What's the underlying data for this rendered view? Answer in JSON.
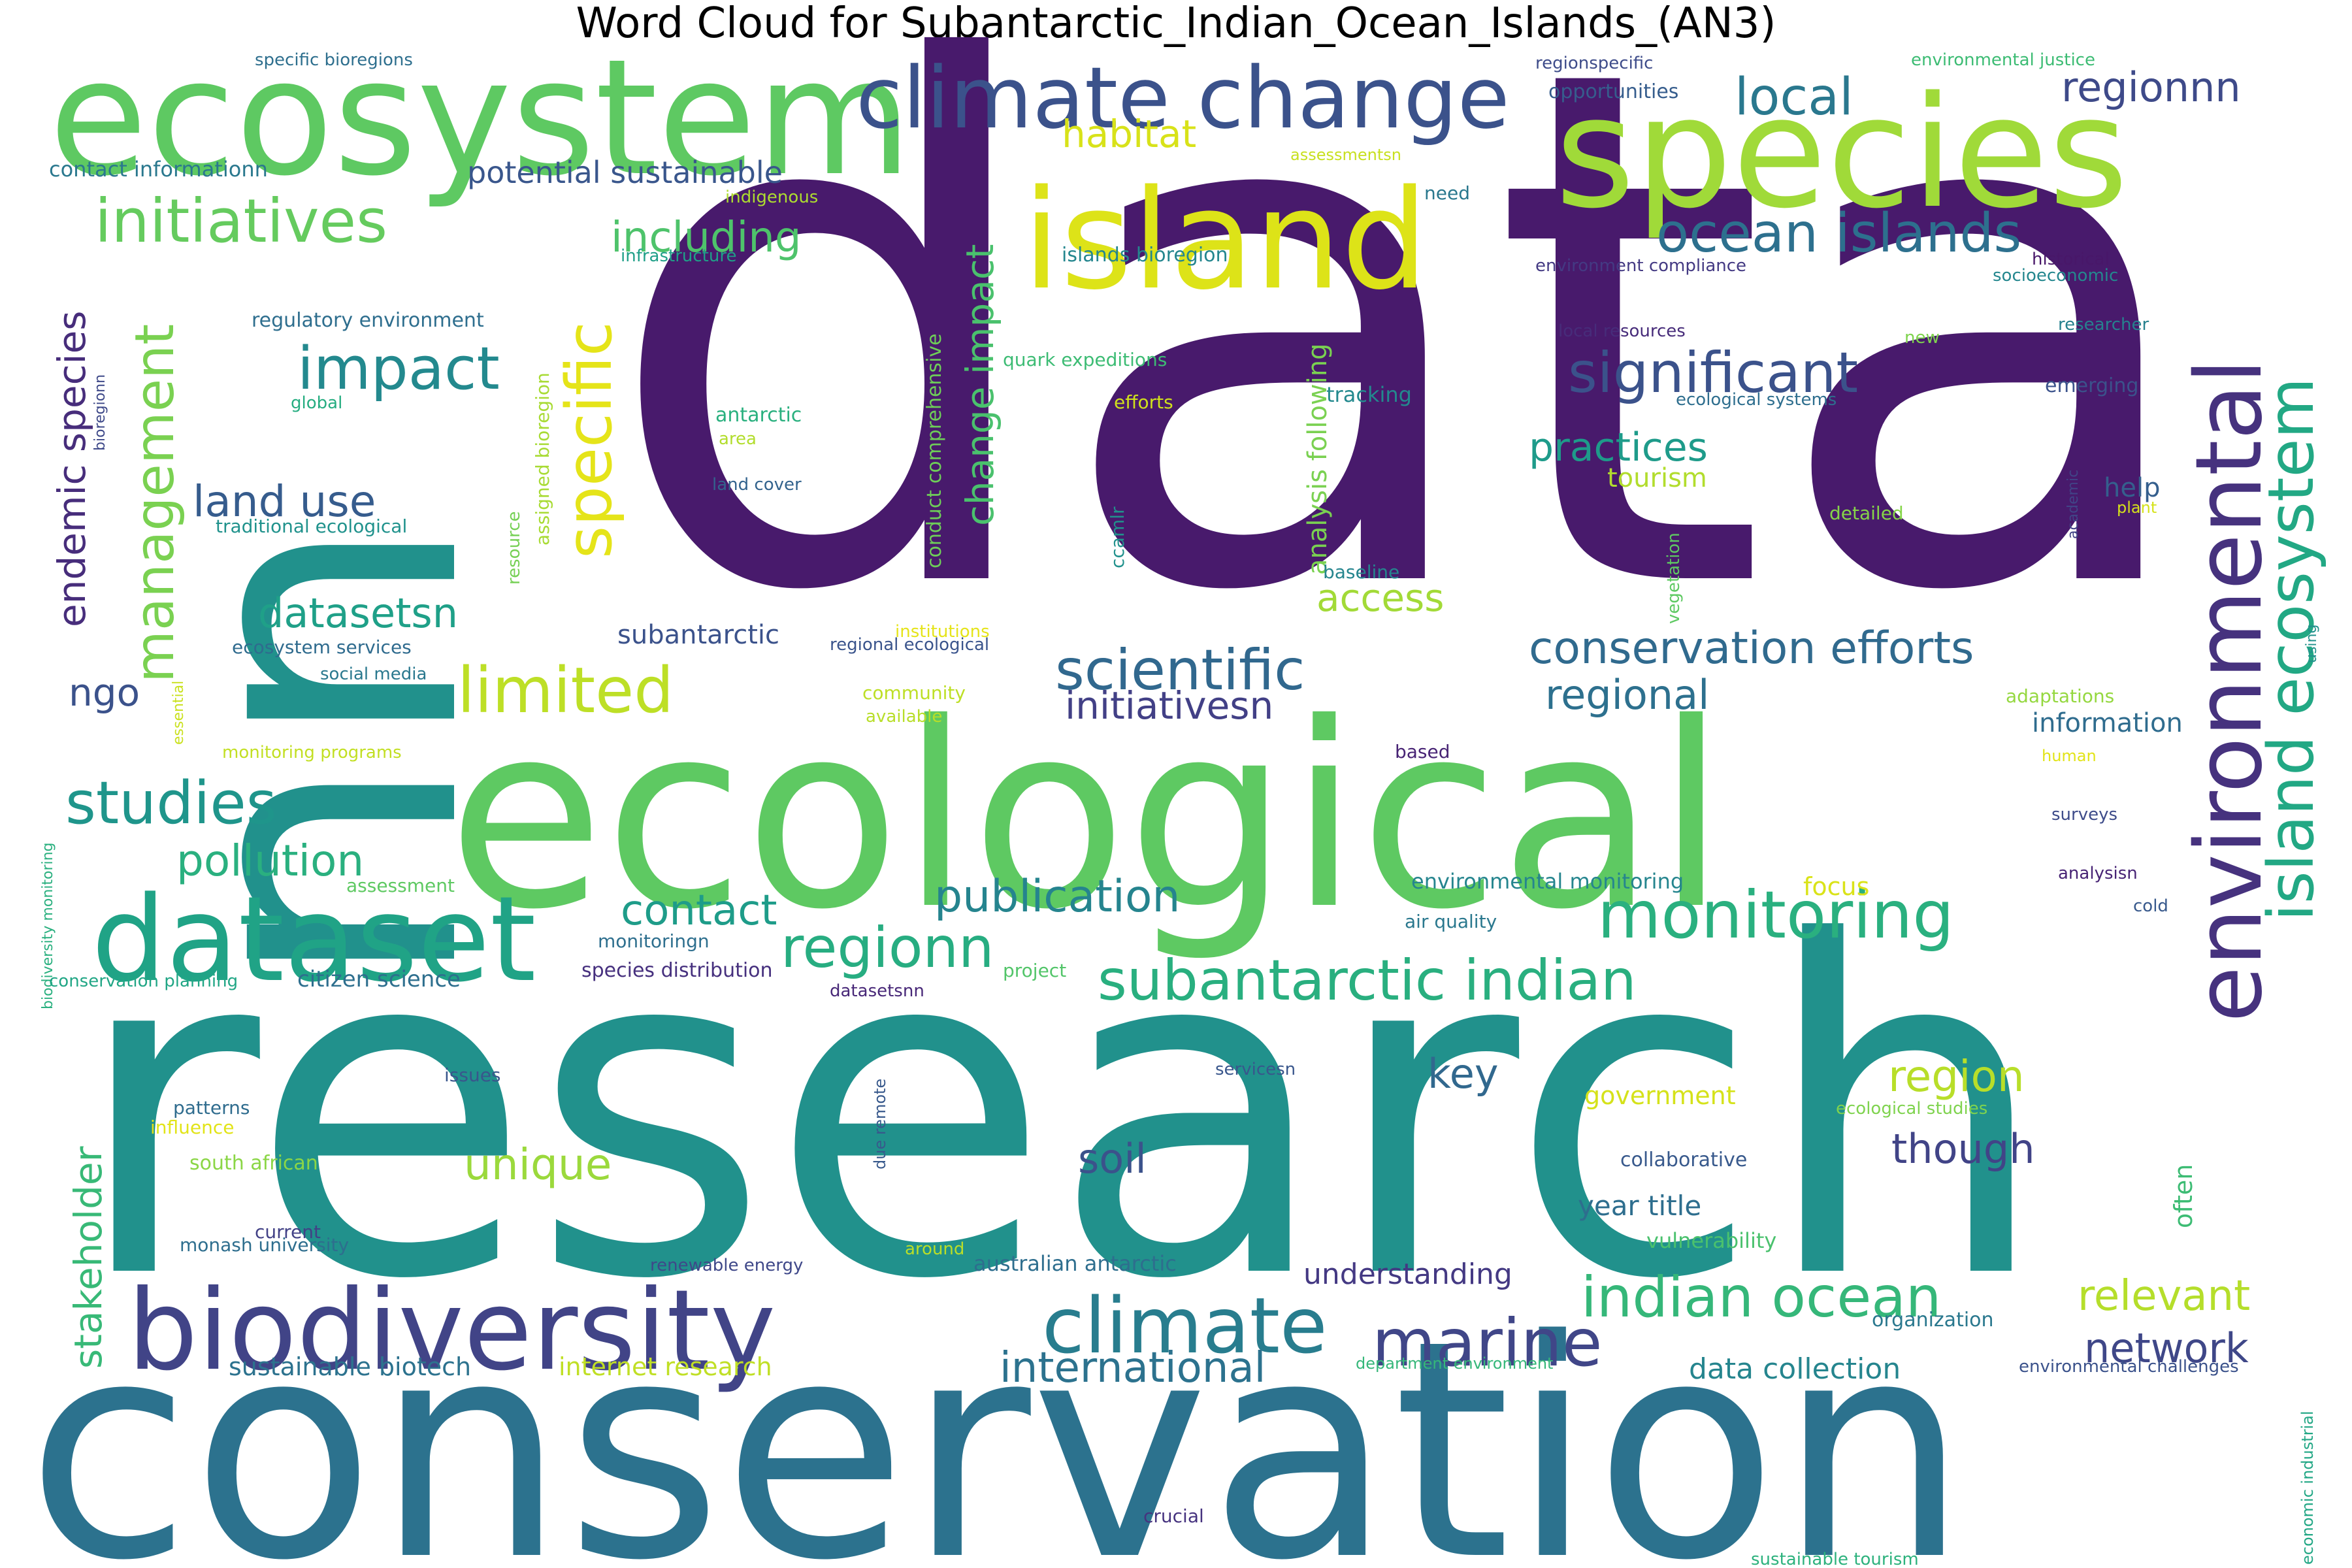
{
  "title": "Word Cloud for Subantarctic_Indian_Ocean_Islands_(AN3)",
  "words": [
    {
      "text": "data",
      "color": "#481a6c"
    },
    {
      "text": "research",
      "color": "#21918c"
    },
    {
      "text": "conservation",
      "color": "#2c728e"
    },
    {
      "text": "ecological",
      "color": "#5ec962"
    },
    {
      "text": "nn",
      "color": "#21918c"
    },
    {
      "text": "ecosystem",
      "color": "#5ec962"
    },
    {
      "text": "species",
      "color": "#a0da39"
    },
    {
      "text": "island",
      "color": "#dde318"
    },
    {
      "text": "climate change",
      "color": "#3b528b"
    },
    {
      "text": "biodiversity",
      "color": "#414487"
    },
    {
      "text": "dataset",
      "color": "#20a386"
    },
    {
      "text": "environmental",
      "color": "#46327e"
    },
    {
      "text": "island ecosystem",
      "color": "#22a884"
    },
    {
      "text": "monitoring",
      "color": "#2ab07f"
    },
    {
      "text": "climate",
      "color": "#287d8e"
    },
    {
      "text": "marine",
      "color": "#404688"
    },
    {
      "text": "specific",
      "color": "#e5e419"
    },
    {
      "text": "management",
      "color": "#7ad151"
    },
    {
      "text": "initiatives",
      "color": "#65cb5e"
    },
    {
      "text": "ocean islands",
      "color": "#2d708e"
    },
    {
      "text": "significant",
      "color": "#3b528b"
    },
    {
      "text": "scientific",
      "color": "#31688e"
    },
    {
      "text": "impact",
      "color": "#23898e"
    },
    {
      "text": "limited",
      "color": "#bddf26"
    },
    {
      "text": "studies",
      "color": "#1f958b"
    },
    {
      "text": "regionn",
      "color": "#27ad81"
    },
    {
      "text": "subantarctic indian",
      "color": "#29af7f"
    },
    {
      "text": "indian ocean",
      "color": "#35b779"
    },
    {
      "text": "local",
      "color": "#2a788e"
    },
    {
      "text": "regionnn",
      "color": "#3e4a89"
    },
    {
      "text": "conservation efforts",
      "color": "#306a8e"
    },
    {
      "text": "endemic species",
      "color": "#472d7b"
    },
    {
      "text": "change impact",
      "color": "#4ac16d"
    },
    {
      "text": "stakeholder",
      "color": "#38b977"
    },
    {
      "text": "pollution",
      "color": "#2ab07f"
    },
    {
      "text": "publication",
      "color": "#25848e"
    },
    {
      "text": "contact",
      "color": "#1e9c89"
    },
    {
      "text": "datasetsn",
      "color": "#1fa088"
    },
    {
      "text": "practices",
      "color": "#1e9b8a"
    },
    {
      "text": "including",
      "color": "#4ec36b"
    },
    {
      "text": "land use",
      "color": "#365c8d"
    },
    {
      "text": "international",
      "color": "#2c728e"
    },
    {
      "text": "relevant",
      "color": "#b5de2b"
    },
    {
      "text": "region",
      "color": "#b8de29"
    },
    {
      "text": "network",
      "color": "#3f4788"
    },
    {
      "text": "regional",
      "color": "#2d708e"
    },
    {
      "text": "initiativesn",
      "color": "#424086"
    },
    {
      "text": "unique",
      "color": "#9bd93c"
    },
    {
      "text": "soil",
      "color": "#3b528b"
    },
    {
      "text": "though",
      "color": "#414487"
    },
    {
      "text": "key",
      "color": "#31688e"
    },
    {
      "text": "access",
      "color": "#a2da37"
    },
    {
      "text": "habitat",
      "color": "#d8e219"
    },
    {
      "text": "potential sustainable",
      "color": "#39568c"
    },
    {
      "text": "ngo",
      "color": "#3b528b"
    },
    {
      "text": "understanding",
      "color": "#443983"
    },
    {
      "text": "data collection",
      "color": "#25858e"
    },
    {
      "text": "sustainable biotech",
      "color": "#2c728e"
    },
    {
      "text": "internet research",
      "color": "#c0df25"
    },
    {
      "text": "government",
      "color": "#d5e21a"
    },
    {
      "text": "year title",
      "color": "#2e6e8e"
    },
    {
      "text": "information",
      "color": "#2f6c8e"
    },
    {
      "text": "tourism",
      "color": "#b2dd2d"
    },
    {
      "text": "subantarctic",
      "color": "#3b528b"
    },
    {
      "text": "help",
      "color": "#355f8d"
    },
    {
      "text": "focus",
      "color": "#dae319"
    },
    {
      "text": "citizen science",
      "color": "#2e6f8e"
    },
    {
      "text": "analysis following",
      "color": "#7ad151"
    },
    {
      "text": "conduct comprehensive",
      "color": "#6ece58"
    },
    {
      "text": "assigned bioregion",
      "color": "#a8db34"
    },
    {
      "text": "often",
      "color": "#3dbc74"
    },
    {
      "text": "specific bioregions",
      "color": "#2e6f8e"
    },
    {
      "text": "contact informationn",
      "color": "#2a788e"
    },
    {
      "text": "regulatory environment",
      "color": "#2e6e8e"
    },
    {
      "text": "global",
      "color": "#26ad81"
    },
    {
      "text": "bioregionn",
      "color": "#3e4989"
    },
    {
      "text": "traditional ecological",
      "color": "#20928c"
    },
    {
      "text": "ecosystem services",
      "color": "#2f6b8e"
    },
    {
      "text": "social media",
      "color": "#2a788e"
    },
    {
      "text": "essential",
      "color": "#cae11f"
    },
    {
      "text": "monitoring programs",
      "color": "#c2df23"
    },
    {
      "text": "assessment",
      "color": "#5ec962"
    },
    {
      "text": "biodiversity monitoring",
      "color": "#2ab07f"
    },
    {
      "text": "conservation planning",
      "color": "#21a685"
    },
    {
      "text": "patterns",
      "color": "#2f6c8e"
    },
    {
      "text": "influence",
      "color": "#e2e418"
    },
    {
      "text": "south african",
      "color": "#8bd646"
    },
    {
      "text": "current",
      "color": "#424186"
    },
    {
      "text": "monash university",
      "color": "#2e6e8e"
    },
    {
      "text": "indigenous",
      "color": "#addc30"
    },
    {
      "text": "infrastructure",
      "color": "#1f9f88"
    },
    {
      "text": "resource",
      "color": "#75d054"
    },
    {
      "text": "antarctic",
      "color": "#2ab07f"
    },
    {
      "text": "area",
      "color": "#b2dd2d"
    },
    {
      "text": "land cover",
      "color": "#33638d"
    },
    {
      "text": "quark expeditions",
      "color": "#3dbc74"
    },
    {
      "text": "efforts",
      "color": "#d0e11c"
    },
    {
      "text": "tracking",
      "color": "#23898e"
    },
    {
      "text": "islands bioregion",
      "color": "#24868e"
    },
    {
      "text": "ccamlr",
      "color": "#21918c"
    },
    {
      "text": "baseline",
      "color": "#25858e"
    },
    {
      "text": "vegetation",
      "color": "#5ec962"
    },
    {
      "text": "institutions",
      "color": "#e5e419"
    },
    {
      "text": "regional ecological",
      "color": "#3a548c"
    },
    {
      "text": "community",
      "color": "#bddf26"
    },
    {
      "text": "available",
      "color": "#b8de29"
    },
    {
      "text": "based",
      "color": "#482475"
    },
    {
      "text": "environmental monitoring",
      "color": "#25858e"
    },
    {
      "text": "air quality",
      "color": "#2a788e"
    },
    {
      "text": "monitoringn",
      "color": "#2e6f8e"
    },
    {
      "text": "species distribution",
      "color": "#46307e"
    },
    {
      "text": "datasetsnn",
      "color": "#482878"
    },
    {
      "text": "project",
      "color": "#52c569"
    },
    {
      "text": "issues",
      "color": "#39568c"
    },
    {
      "text": "due remote",
      "color": "#38598c"
    },
    {
      "text": "servicesn",
      "color": "#39568c"
    },
    {
      "text": "renewable energy",
      "color": "#3f4889"
    },
    {
      "text": "around",
      "color": "#bade28"
    },
    {
      "text": "australian antarctic",
      "color": "#2e6e8e"
    },
    {
      "text": "crucial",
      "color": "#46337f"
    },
    {
      "text": "collaborative",
      "color": "#38598c"
    },
    {
      "text": "vulnerability",
      "color": "#4ac16d"
    },
    {
      "text": "organization",
      "color": "#2a788e"
    },
    {
      "text": "department environment",
      "color": "#35b779"
    },
    {
      "text": "environmental challenges",
      "color": "#3b528b"
    },
    {
      "text": "ecological studies",
      "color": "#7fd34e"
    },
    {
      "text": "economic industrial",
      "color": "#22a785"
    },
    {
      "text": "sustainable tourism",
      "color": "#2db27d"
    },
    {
      "text": "environmental justice",
      "color": "#3dbc74"
    },
    {
      "text": "regionspecific",
      "color": "#3e4c8a"
    },
    {
      "text": "opportunities",
      "color": "#365d8d"
    },
    {
      "text": "assessmentsn",
      "color": "#c8e020"
    },
    {
      "text": "need",
      "color": "#2a788e"
    },
    {
      "text": "historical",
      "color": "#481769"
    },
    {
      "text": "socioeconomic",
      "color": "#24878e"
    },
    {
      "text": "environment compliance",
      "color": "#443a83"
    },
    {
      "text": "local resources",
      "color": "#472c7a"
    },
    {
      "text": "new",
      "color": "#7fd34e"
    },
    {
      "text": "researcher",
      "color": "#26818e"
    },
    {
      "text": "emerging",
      "color": "#3b528b"
    },
    {
      "text": "ecological systems",
      "color": "#2e6e8e"
    },
    {
      "text": "academic",
      "color": "#414487"
    },
    {
      "text": "plant",
      "color": "#d5e21a"
    },
    {
      "text": "detailed",
      "color": "#86d549"
    },
    {
      "text": "using",
      "color": "#21918c"
    },
    {
      "text": "adaptations",
      "color": "#95d840"
    },
    {
      "text": "human",
      "color": "#e2e418"
    },
    {
      "text": "surveys",
      "color": "#3e4c8a"
    },
    {
      "text": "analysisn",
      "color": "#482475"
    },
    {
      "text": "cold",
      "color": "#38598c"
    }
  ]
}
